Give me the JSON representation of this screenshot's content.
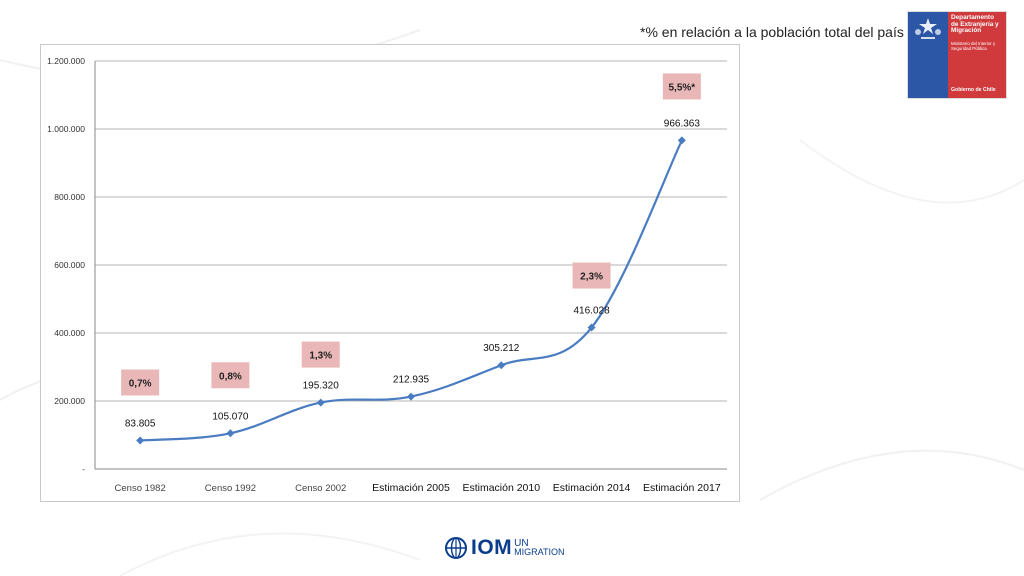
{
  "footnote": "*% en relación a la población total del país",
  "logo": {
    "department": "Departamento de Extranjería y Migración",
    "ministry": "Ministerio del Interior y Seguridad Pública",
    "government": "Gobierno de Chile"
  },
  "iom": {
    "brand": "IOM",
    "un": "UN",
    "migration": "MIGRATION"
  },
  "colors": {
    "line": "#4a7cc2",
    "gov_blue": "#2b57a6",
    "gov_red": "#d03a3d",
    "pct_box": "#e9b7b7",
    "iom_blue": "#0a3e8c"
  },
  "chart_data": {
    "type": "line",
    "categories": [
      "Censo 1982",
      "Censo 1992",
      "Censo 2002",
      "Estimación 2005",
      "Estimación 2010",
      "Estimación 2014",
      "Estimación 2017"
    ],
    "values": [
      83805,
      105070,
      195320,
      212935,
      305212,
      416028,
      966363
    ],
    "value_labels": [
      "83.805",
      "105.070",
      "195.320",
      "212.935",
      "305.212",
      "416.028",
      "966.363"
    ],
    "ylim": [
      0,
      1200000
    ],
    "yticks": [
      0,
      200000,
      400000,
      600000,
      800000,
      1000000,
      1200000
    ],
    "ytick_labels": [
      "-",
      "200.000",
      "400.000",
      "600.000",
      "800.000",
      "1.000.000",
      "1.200.000"
    ],
    "grid": true,
    "percent_annotations": [
      {
        "category_index": 0,
        "label": "0,7%"
      },
      {
        "category_index": 1,
        "label": "0,8%"
      },
      {
        "category_index": 2,
        "label": "1,3%"
      },
      {
        "category_index": 5,
        "label": "2,3%"
      },
      {
        "category_index": 6,
        "label": "5,5%*"
      }
    ]
  }
}
